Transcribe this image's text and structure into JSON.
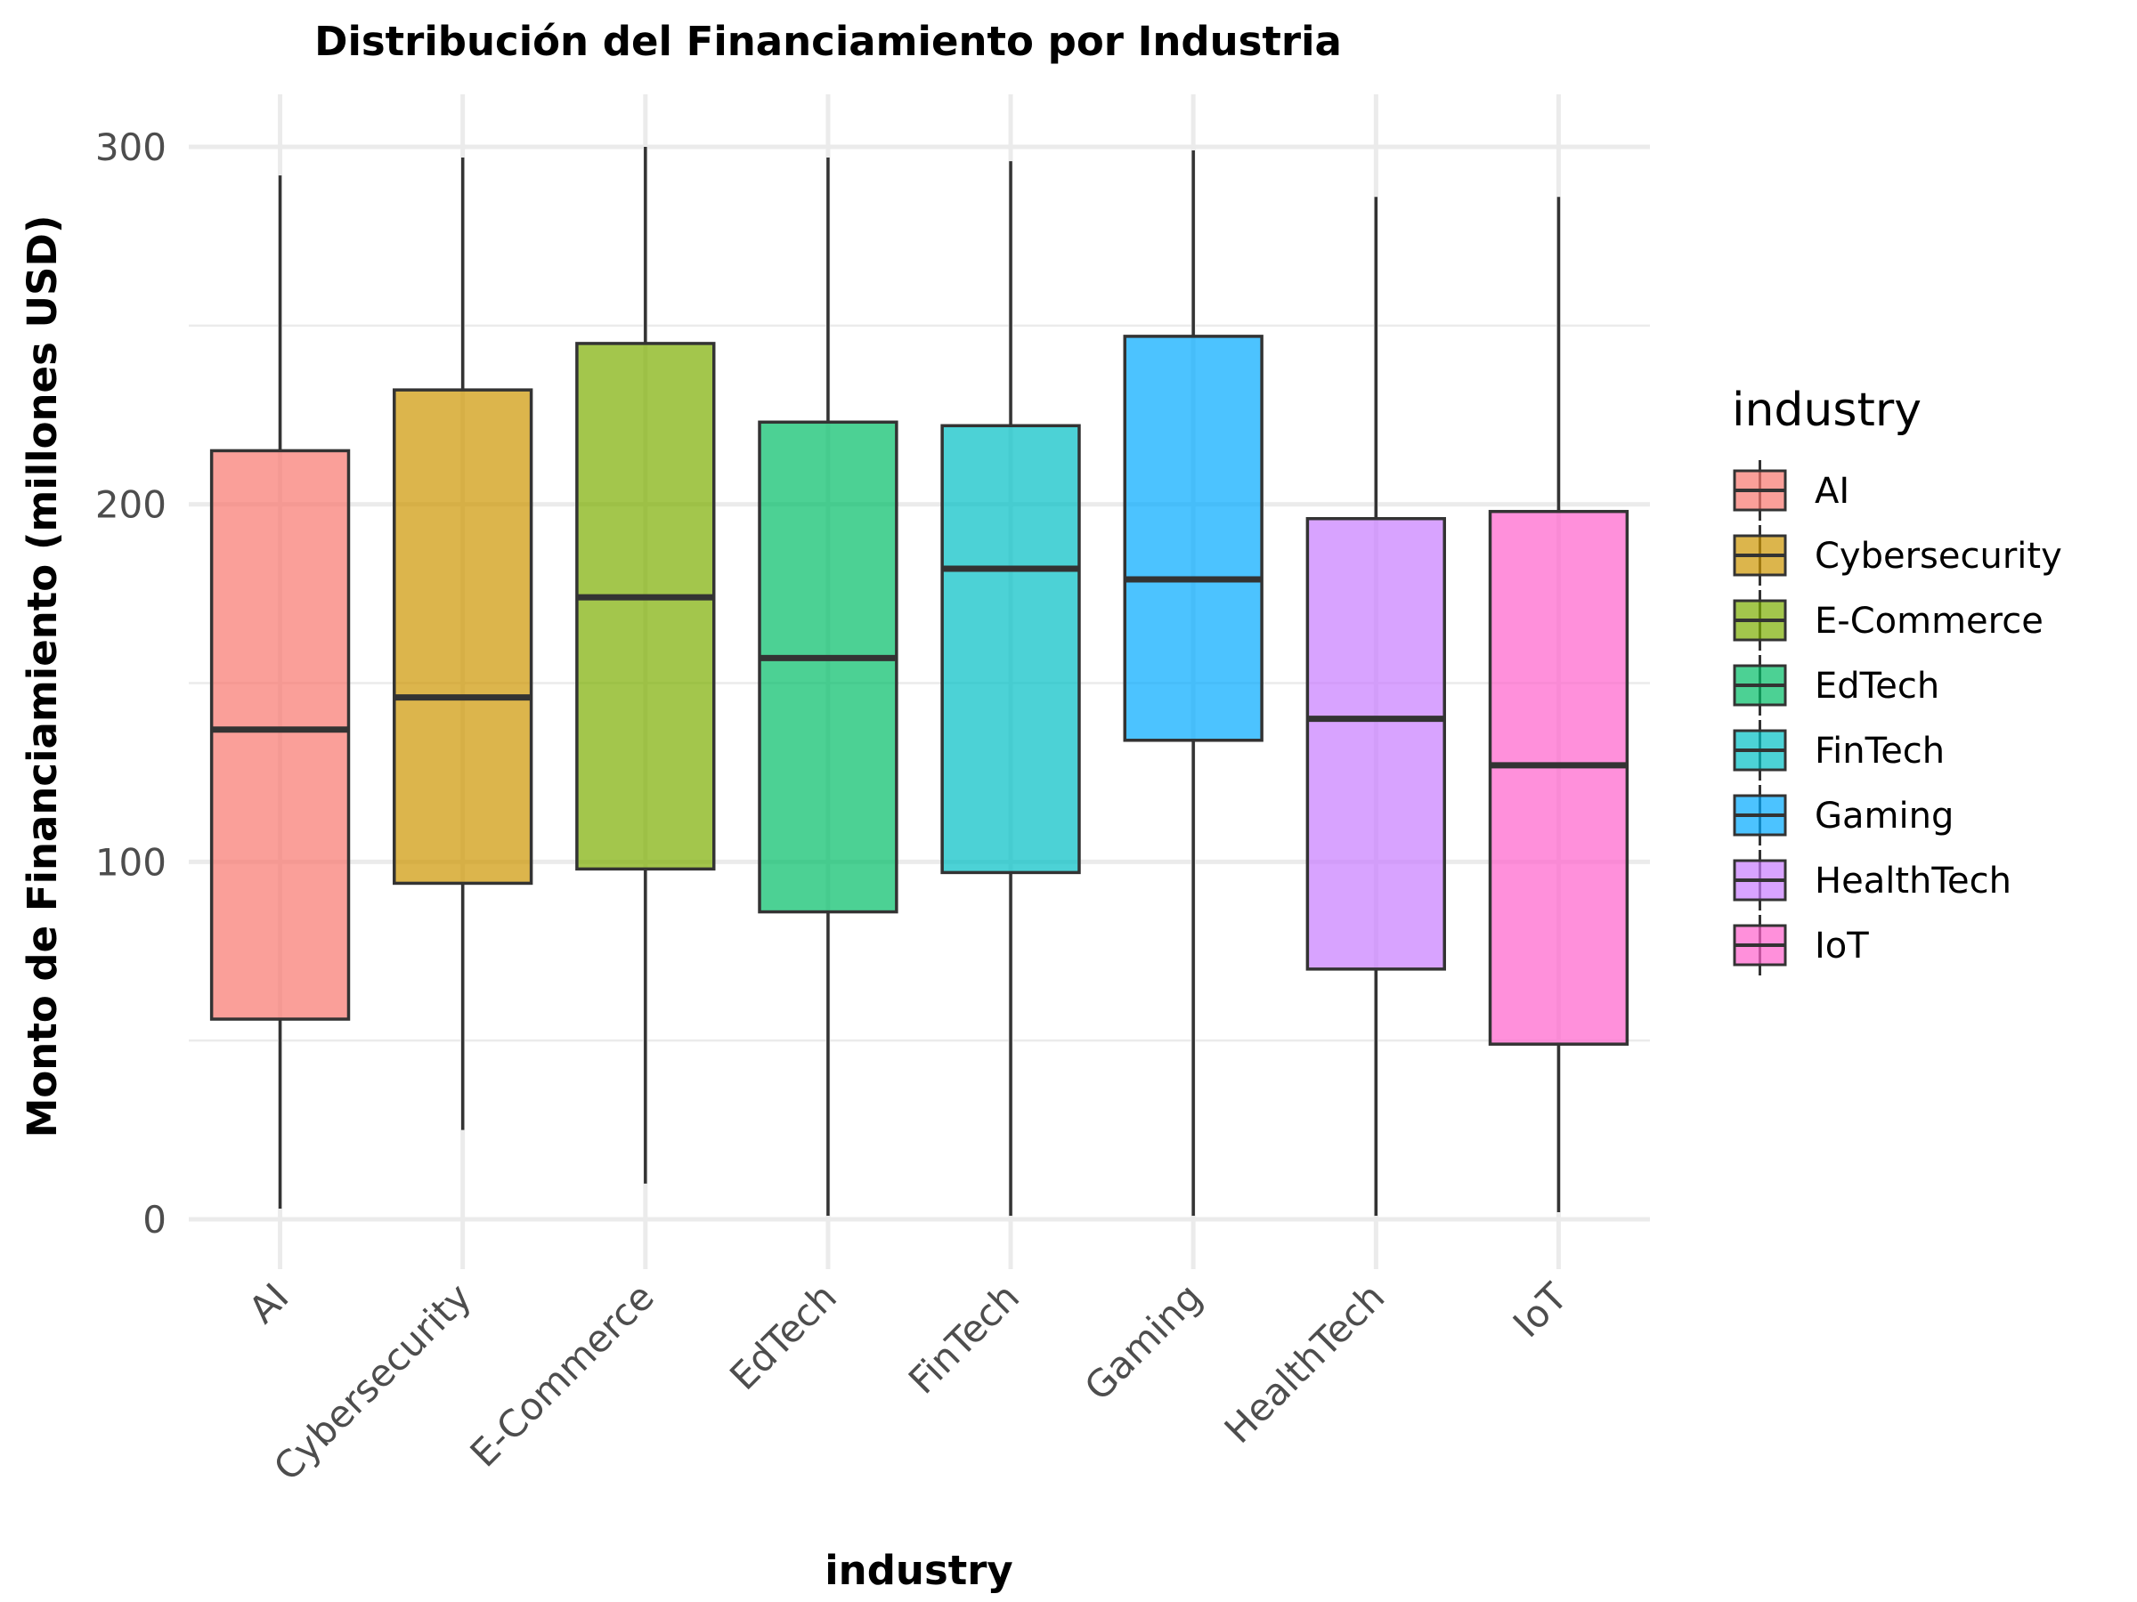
{
  "chart_data": {
    "type": "box",
    "title": "Distribución del Financiamiento por Industria",
    "xlabel": "industry",
    "ylabel": "Monto de Financiamiento (millones USD)",
    "ylim": [
      -15,
      315
    ],
    "yticks": [
      0,
      100,
      200,
      300
    ],
    "grid": true,
    "legend": {
      "title": "industry",
      "position": "right"
    },
    "categories": [
      "AI",
      "Cybersecurity",
      "E-Commerce",
      "EdTech",
      "FinTech",
      "Gaming",
      "HealthTech",
      "IoT"
    ],
    "series": [
      {
        "name": "AI",
        "min": 3,
        "q1": 56,
        "median": 137,
        "q3": 215,
        "max": 292,
        "color": "#F8766D"
      },
      {
        "name": "Cybersecurity",
        "min": 25,
        "q1": 94,
        "median": 146,
        "q3": 232,
        "max": 297,
        "color": "#CD9600"
      },
      {
        "name": "E-Commerce",
        "min": 10,
        "q1": 98,
        "median": 174,
        "q3": 245,
        "max": 300,
        "color": "#7CAE00"
      },
      {
        "name": "EdTech",
        "min": 1,
        "q1": 86,
        "median": 157,
        "q3": 223,
        "max": 297,
        "color": "#00BE67"
      },
      {
        "name": "FinTech",
        "min": 1,
        "q1": 97,
        "median": 182,
        "q3": 222,
        "max": 296,
        "color": "#00BFC4"
      },
      {
        "name": "Gaming",
        "min": 1,
        "q1": 134,
        "median": 179,
        "q3": 247,
        "max": 299,
        "color": "#00A9FF"
      },
      {
        "name": "HealthTech",
        "min": 1,
        "q1": 70,
        "median": 140,
        "q3": 196,
        "max": 286,
        "color": "#C77CFF"
      },
      {
        "name": "IoT",
        "min": 2,
        "q1": 49,
        "median": 127,
        "q3": 198,
        "max": 286,
        "color": "#FF61CC"
      }
    ]
  }
}
